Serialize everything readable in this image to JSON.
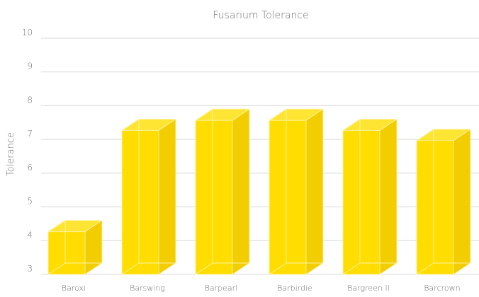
{
  "chart_data": {
    "type": "bar",
    "title": "Fusarium Tolerance",
    "xlabel": "",
    "ylabel": "Tolerance",
    "categories": [
      "Baroxi",
      "Barswing",
      "Barpearl",
      "Barbirdie",
      "Bargreen II",
      "Barcrown"
    ],
    "values": [
      4.6,
      7.6,
      7.9,
      7.9,
      7.6,
      7.3
    ],
    "ylim": [
      3,
      10
    ],
    "yticks": [
      3,
      4,
      5,
      6,
      7,
      8,
      9,
      10
    ],
    "grid": true,
    "legend": "none",
    "style": "3d-column",
    "colors": {
      "bar_front": "#ffdd00",
      "bar_side": "#f2cd00",
      "bar_top": "#ffe533",
      "edge": "#fff3a8",
      "grid": "#d9d9d9",
      "text": "#6e6e6e"
    }
  }
}
